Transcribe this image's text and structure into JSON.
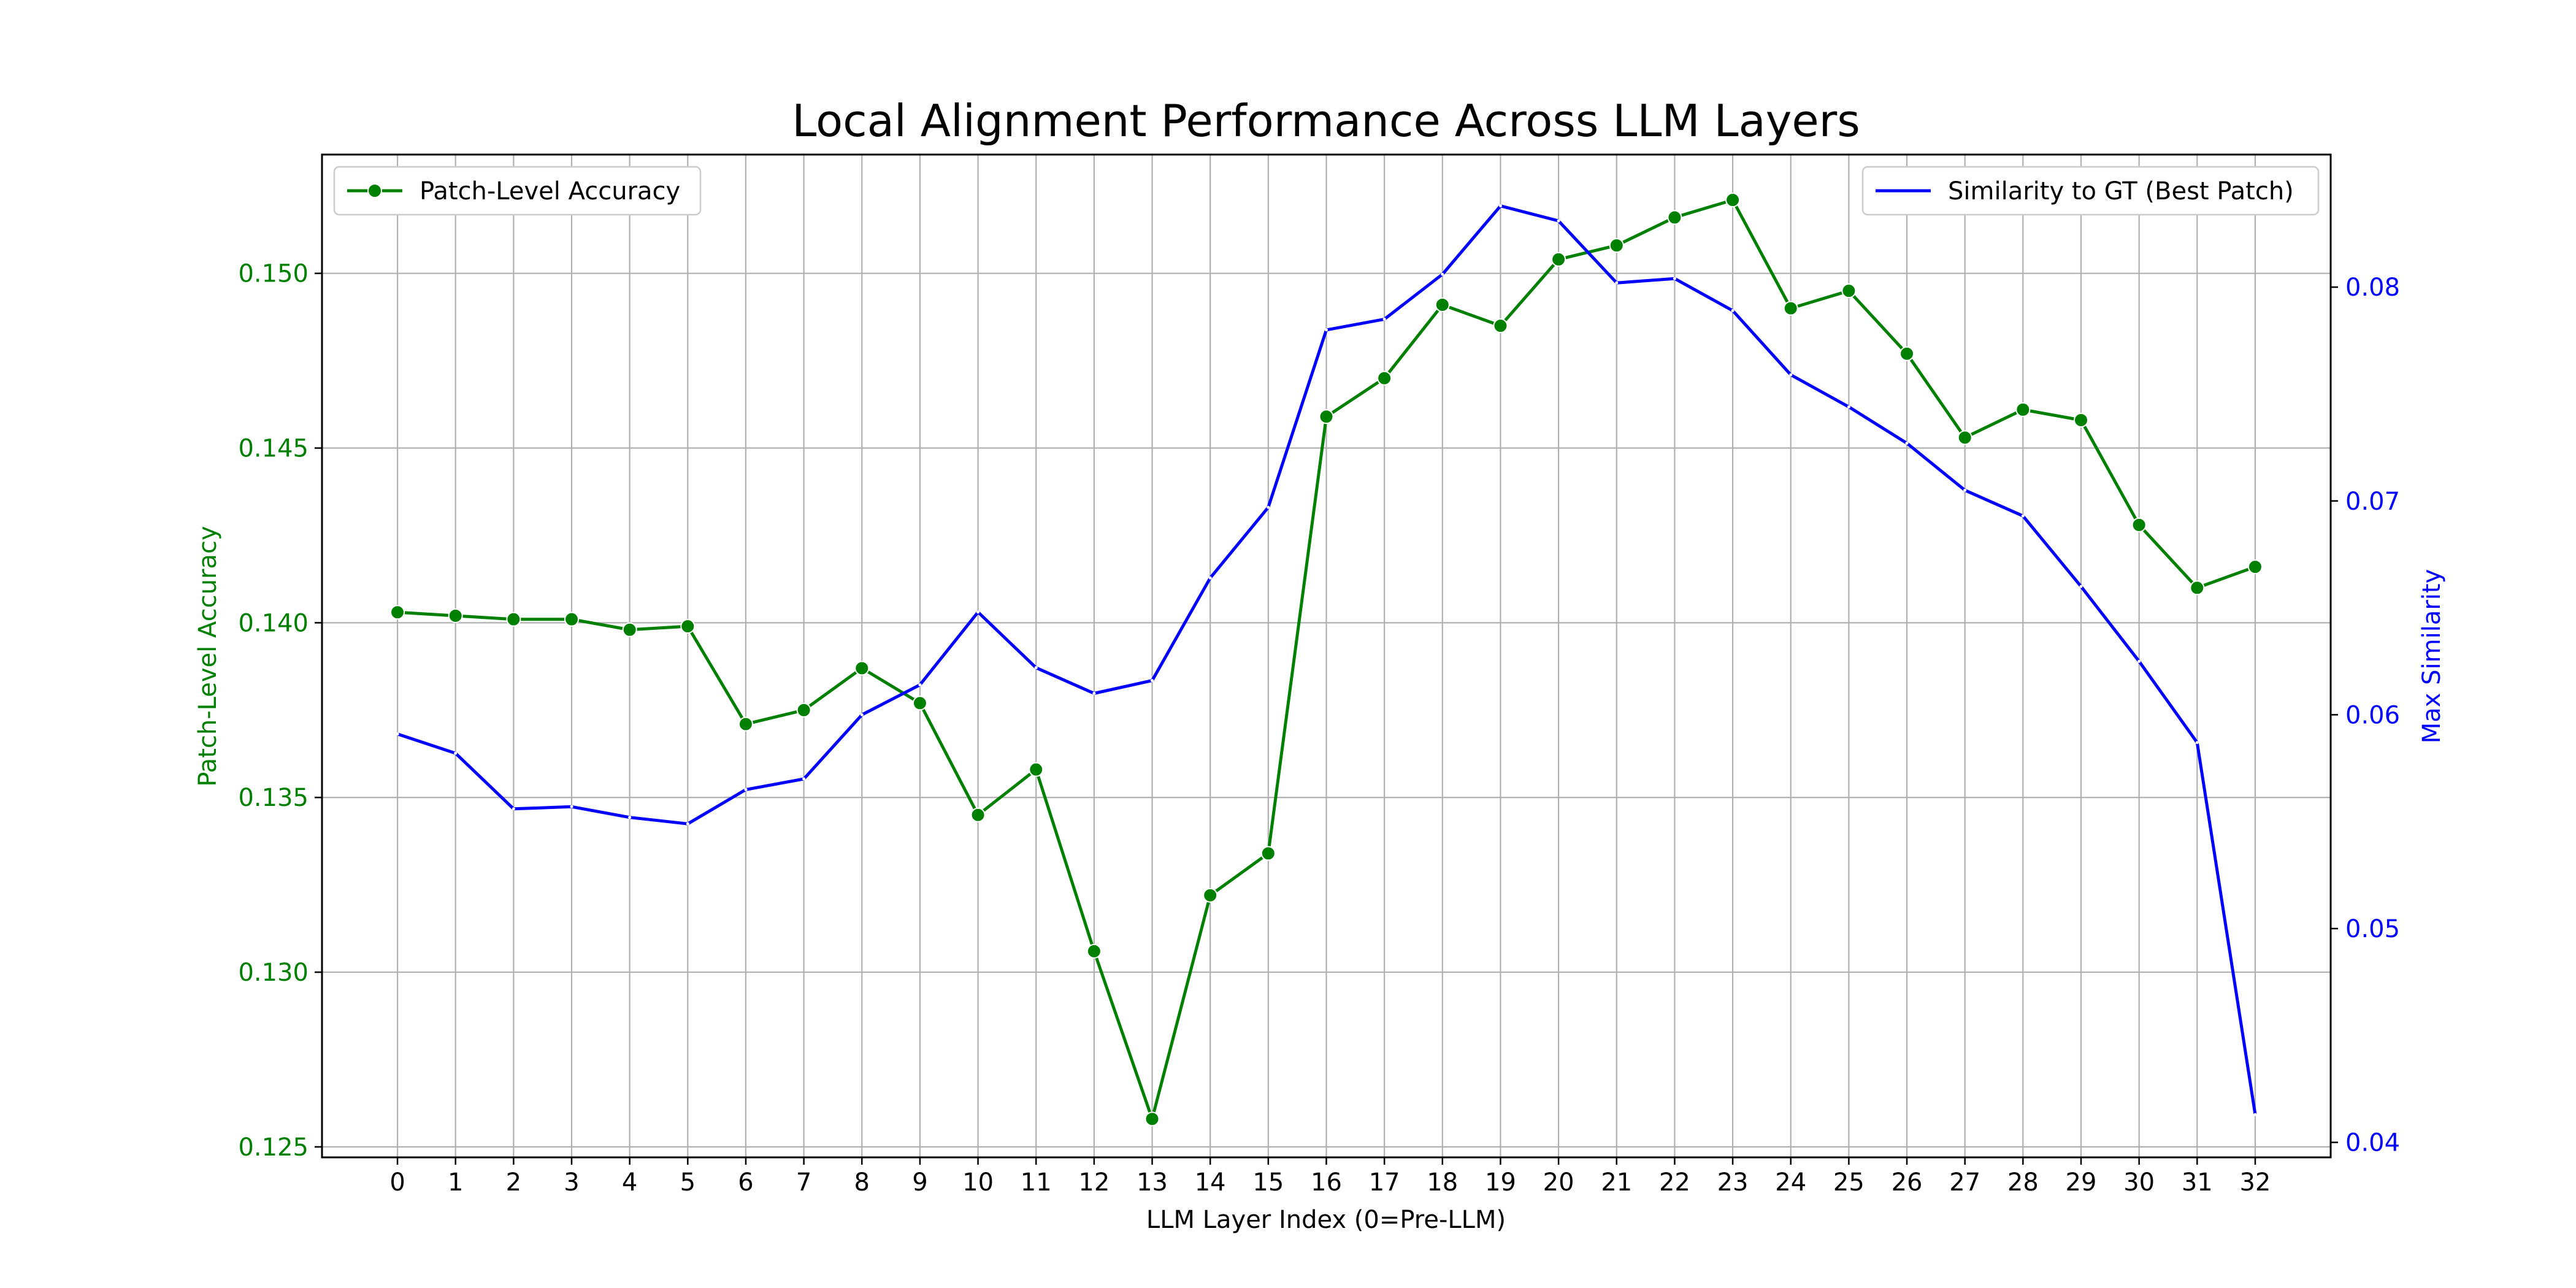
{
  "chart_data": {
    "type": "line",
    "title": "Local Alignment Performance Across LLM Layers",
    "xlabel": "LLM Layer Index (0=Pre-LLM)",
    "ylabel_left": "Patch-Level Accuracy",
    "ylabel_right": "Max Similarity",
    "x": [
      0,
      1,
      2,
      3,
      4,
      5,
      6,
      7,
      8,
      9,
      10,
      11,
      12,
      13,
      14,
      15,
      16,
      17,
      18,
      19,
      20,
      21,
      22,
      23,
      24,
      25,
      26,
      27,
      28,
      29,
      30,
      31,
      32
    ],
    "x_ticks": [
      "0",
      "1",
      "2",
      "3",
      "4",
      "5",
      "6",
      "7",
      "8",
      "9",
      "10",
      "11",
      "12",
      "13",
      "14",
      "15",
      "16",
      "17",
      "18",
      "19",
      "20",
      "21",
      "22",
      "23",
      "24",
      "25",
      "26",
      "27",
      "28",
      "29",
      "30",
      "31",
      "32"
    ],
    "xlim": [
      -1.3,
      33.3
    ],
    "ylim_left": [
      0.1247,
      0.1534
    ],
    "ylim_right": [
      0.0393,
      0.0862
    ],
    "left_ticks": [
      0.125,
      0.13,
      0.135,
      0.14,
      0.145,
      0.15
    ],
    "left_tick_labels": [
      "0.125",
      "0.130",
      "0.135",
      "0.140",
      "0.145",
      "0.150"
    ],
    "right_ticks": [
      0.04,
      0.05,
      0.06,
      0.07,
      0.08
    ],
    "right_tick_labels": [
      "0.04",
      "0.05",
      "0.06",
      "0.07",
      "0.08"
    ],
    "grid": true,
    "series": [
      {
        "name": "Patch-Level Accuracy",
        "axis": "left",
        "color": "#008000",
        "marker": "circle",
        "legend_position": "top-left",
        "values": [
          0.1403,
          0.1402,
          0.1401,
          0.1401,
          0.1398,
          0.1399,
          0.1371,
          0.1375,
          0.1387,
          0.1377,
          0.1345,
          0.1358,
          0.1306,
          0.1258,
          0.1322,
          0.1334,
          0.1459,
          0.147,
          0.1491,
          0.1485,
          0.1504,
          0.1508,
          0.1516,
          0.1521,
          0.149,
          0.1495,
          0.1477,
          0.1453,
          0.1461,
          0.1458,
          0.1428,
          0.141,
          0.1416
        ]
      },
      {
        "name": "Similarity to GT (Best Patch)",
        "axis": "right",
        "color": "#0000ff",
        "marker": "none",
        "legend_position": "top-right",
        "values": [
          0.0591,
          0.0582,
          0.0556,
          0.0557,
          0.0552,
          0.0549,
          0.0565,
          0.057,
          0.06,
          0.0614,
          0.0648,
          0.0622,
          0.061,
          0.0616,
          0.0664,
          0.0697,
          0.078,
          0.0785,
          0.0806,
          0.0838,
          0.0831,
          0.0802,
          0.0804,
          0.0789,
          0.0759,
          0.0744,
          0.0727,
          0.0705,
          0.0693,
          0.066,
          0.0625,
          0.0587,
          0.0413
        ]
      }
    ]
  }
}
